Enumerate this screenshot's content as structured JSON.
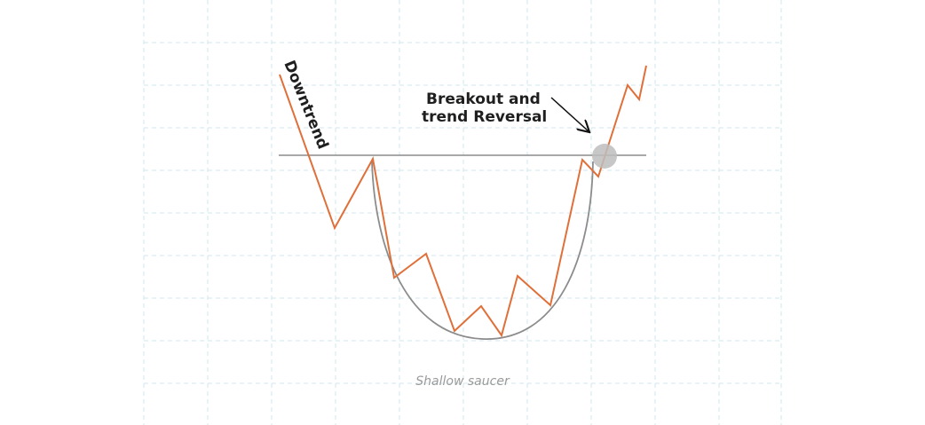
{
  "labels": {
    "downtrend": "Downtrend",
    "breakout_line1": "Breakout and",
    "breakout_line2": "trend Reversal",
    "saucer": "Shallow saucer"
  },
  "colors": {
    "price_line": "#e0703a",
    "saucer_curve": "#8c8c8c",
    "resistance": "#8c8c8c",
    "grid": "#cfe7ec",
    "breakout_marker": "#bdbdbd",
    "arrow": "#111111"
  },
  "icons": {
    "breakout_marker": "circle-marker",
    "arrow": "arrow-pointer"
  }
}
